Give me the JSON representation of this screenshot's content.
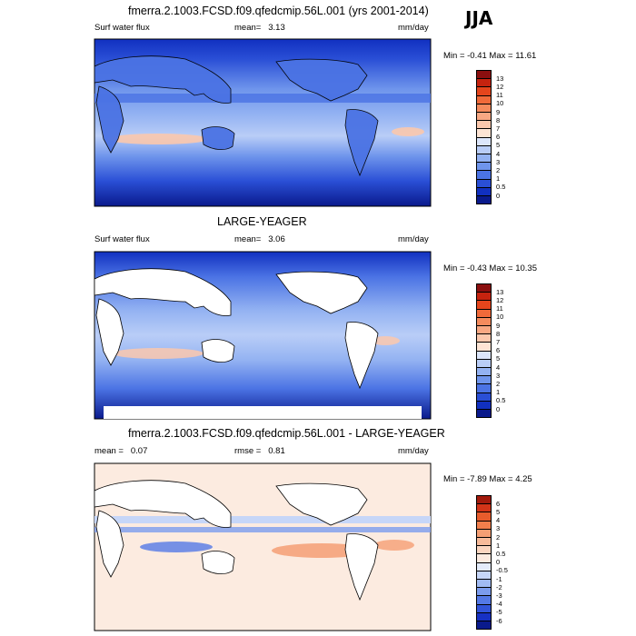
{
  "season": "JJA",
  "panels": [
    {
      "title": "fmerra.2.1003.FCSD.f09.qfedcmip.56L.001 (yrs 2001-2014)",
      "left_label": "Surf water flux",
      "center_label": "mean=",
      "center_value": "3.13",
      "units": "mm/day",
      "minmax": "Min =  -0.41 Max =  11.61",
      "land_masked": false,
      "colorbar": {
        "labels": [
          "13",
          "12",
          "11",
          "10",
          "9",
          "8",
          "7",
          "6",
          "5",
          "4",
          "3",
          "2",
          "1",
          "0.5",
          "0"
        ],
        "colors": [
          "#8b0f0f",
          "#c6230f",
          "#e5451c",
          "#f06a3a",
          "#f58b5d",
          "#f8a883",
          "#fbc8ad",
          "#fde4d4",
          "#dce6fb",
          "#b9cdf7",
          "#93b2f2",
          "#6f95ec",
          "#4b73e4",
          "#2a4fd6",
          "#1130c0",
          "#0a1a8c"
        ]
      }
    },
    {
      "title": "LARGE-YEAGER",
      "left_label": "Surf water flux",
      "center_label": "mean=",
      "center_value": "3.06",
      "units": "mm/day",
      "minmax": "Min =  -0.43 Max =  10.35",
      "land_masked": true,
      "colorbar": {
        "labels": [
          "13",
          "12",
          "11",
          "10",
          "9",
          "8",
          "7",
          "6",
          "5",
          "4",
          "3",
          "2",
          "1",
          "0.5",
          "0"
        ],
        "colors": [
          "#8b0f0f",
          "#c6230f",
          "#e5451c",
          "#f06a3a",
          "#f58b5d",
          "#f8a883",
          "#fbc8ad",
          "#fde4d4",
          "#dce6fb",
          "#b9cdf7",
          "#93b2f2",
          "#6f95ec",
          "#4b73e4",
          "#2a4fd6",
          "#1130c0",
          "#0a1a8c"
        ]
      }
    },
    {
      "title": "fmerra.2.1003.FCSD.f09.qfedcmip.56L.001 - LARGE-YEAGER",
      "left_label": "mean =",
      "left_value": "0.07",
      "center_label": "rmse =",
      "center_value": "0.81",
      "units": "mm/day",
      "minmax": "Min =  -7.89 Max =   4.25",
      "land_masked": true,
      "colorbar": {
        "labels": [
          "6",
          "5",
          "4",
          "3",
          "2",
          "1",
          "0.5",
          "0",
          "-0.5",
          "-1",
          "-2",
          "-3",
          "-4",
          "-5",
          "-6"
        ],
        "colors": [
          "#a31a0c",
          "#d33418",
          "#e85c2c",
          "#f27f4c",
          "#f59f74",
          "#f8bb9a",
          "#fbd6c0",
          "#fcebe0",
          "#e4ecfb",
          "#c6d6f8",
          "#a1bbf3",
          "#7b9cee",
          "#5479e6",
          "#3254d9",
          "#1731c4",
          "#0a1a8c"
        ]
      }
    }
  ]
}
